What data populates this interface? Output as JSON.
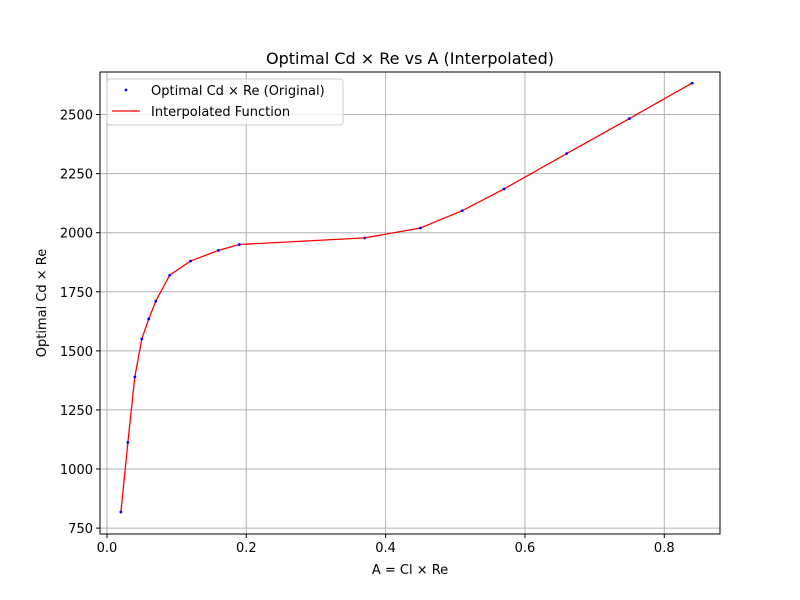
{
  "chart_data": {
    "type": "line",
    "title": "Optimal Cd × Re vs A (Interpolated)",
    "xlabel": "A = Cl × Re",
    "ylabel": "Optimal Cd × Re",
    "xlim": [
      -0.01,
      0.88
    ],
    "ylim": [
      725,
      2680
    ],
    "xticks": [
      0.0,
      0.2,
      0.4,
      0.6,
      0.8
    ],
    "xtick_labels": [
      "0.0",
      "0.2",
      "0.4",
      "0.6",
      "0.8"
    ],
    "yticks": [
      750,
      1000,
      1250,
      1500,
      1750,
      2000,
      2250,
      2500
    ],
    "ytick_labels": [
      "750",
      "1000",
      "1250",
      "1500",
      "1750",
      "2000",
      "2250",
      "2500"
    ],
    "grid": true,
    "legend_position": "top-left",
    "series": [
      {
        "name": "Optimal Cd × Re (Original)",
        "kind": "scatter",
        "color": "#0000ff",
        "x": [
          0.02,
          0.03,
          0.04,
          0.05,
          0.06,
          0.07,
          0.09,
          0.12,
          0.16,
          0.19,
          0.37,
          0.45,
          0.51,
          0.57,
          0.66,
          0.75,
          0.84
        ],
        "y": [
          818,
          1112,
          1390,
          1550,
          1635,
          1710,
          1820,
          1880,
          1925,
          1950,
          1978,
          2020,
          2093,
          2185,
          2335,
          2483,
          2633
        ]
      },
      {
        "name": "Interpolated Function",
        "kind": "line",
        "color": "#ff0000",
        "x": [
          0.02,
          0.03,
          0.04,
          0.05,
          0.06,
          0.07,
          0.09,
          0.12,
          0.16,
          0.19,
          0.37,
          0.45,
          0.51,
          0.57,
          0.66,
          0.75,
          0.84
        ],
        "y": [
          818,
          1112,
          1390,
          1550,
          1635,
          1710,
          1820,
          1880,
          1925,
          1950,
          1978,
          2020,
          2093,
          2185,
          2335,
          2483,
          2633
        ]
      }
    ]
  }
}
